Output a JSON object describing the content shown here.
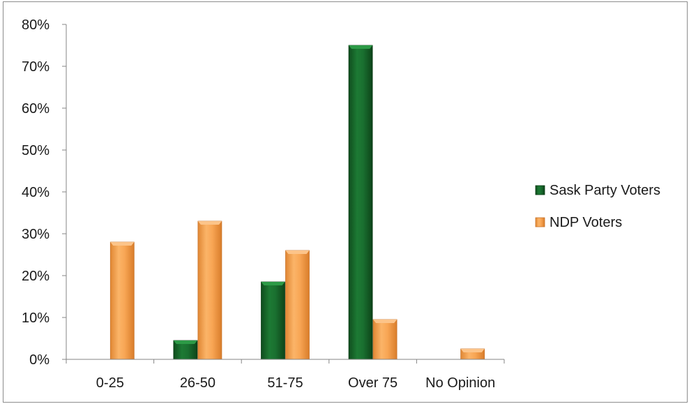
{
  "chart_data": {
    "type": "bar",
    "title": "",
    "xlabel": "",
    "ylabel": "",
    "categories": [
      "0-25",
      "26-50",
      "51-75",
      "Over 75",
      "No Opinion"
    ],
    "series": [
      {
        "name": "Sask Party Voters",
        "color": "#176b2b",
        "values": [
          0,
          4.5,
          18.5,
          75,
          0
        ]
      },
      {
        "name": "NDP Voters",
        "color": "#f7a04b",
        "values": [
          28,
          33,
          26,
          9.5,
          2.5
        ]
      }
    ],
    "ylim": [
      0,
      80
    ],
    "y_ticks": [
      0,
      10,
      20,
      30,
      40,
      50,
      60,
      70,
      80
    ],
    "y_tick_labels": [
      "0%",
      "10%",
      "20%",
      "30%",
      "40%",
      "50%",
      "60%",
      "70%",
      "80%"
    ],
    "grid": false,
    "legend_position": "right"
  }
}
